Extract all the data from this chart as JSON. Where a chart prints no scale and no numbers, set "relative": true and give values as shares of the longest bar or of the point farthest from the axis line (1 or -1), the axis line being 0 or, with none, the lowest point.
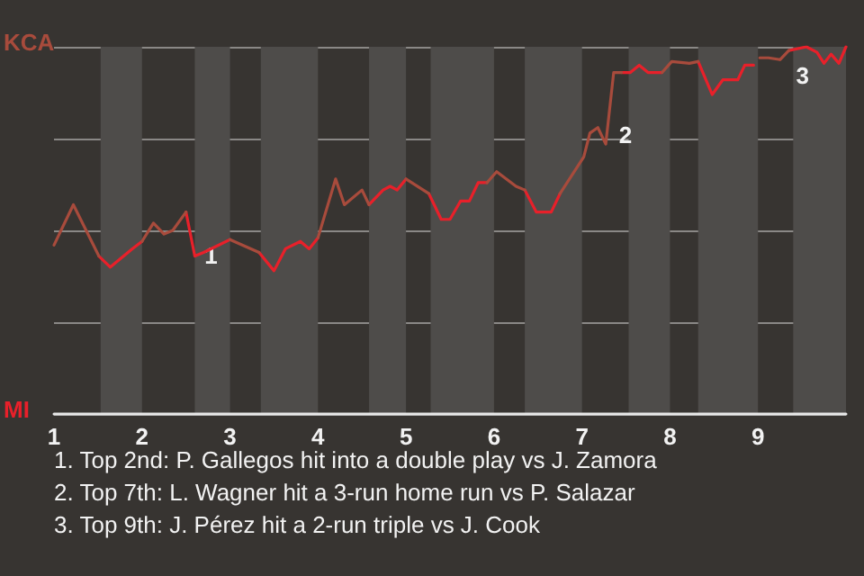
{
  "chart_data": {
    "type": "line",
    "relative": true,
    "grid": "y",
    "marker": "none",
    "line_style": "solid",
    "xlim": [
      1,
      10
    ],
    "xticks": [
      1,
      2,
      3,
      4,
      5,
      6,
      7,
      8,
      9
    ],
    "bands": [
      {
        "axis": "x",
        "from": 1.53,
        "to": 2,
        "color": "#4e4c4a"
      },
      {
        "axis": "x",
        "from": 2.6,
        "to": 3,
        "color": "#4e4c4a"
      },
      {
        "axis": "x",
        "from": 3.35,
        "to": 4,
        "color": "#4e4c4a"
      },
      {
        "axis": "x",
        "from": 4.58,
        "to": 5,
        "color": "#4e4c4a"
      },
      {
        "axis": "x",
        "from": 5.28,
        "to": 6,
        "color": "#4e4c4a"
      },
      {
        "axis": "x",
        "from": 6.35,
        "to": 7,
        "color": "#4e4c4a"
      },
      {
        "axis": "x",
        "from": 7.53,
        "to": 8,
        "color": "#4e4c4a"
      },
      {
        "axis": "x",
        "from": 8.32,
        "to": 9,
        "color": "#4e4c4a"
      },
      {
        "axis": "x",
        "from": 9.4,
        "to": 10,
        "color": "#4e4c4a"
      }
    ],
    "series": [
      {
        "color": "#a84b3c",
        "x": [
          1.0,
          1.22,
          1.51,
          1.78,
          2.0,
          2.13,
          2.25,
          2.35,
          2.5,
          2.75,
          3.0,
          3.33,
          3.63,
          4.0,
          4.2,
          4.3,
          4.5,
          4.58,
          4.8,
          5.0,
          5.26,
          5.5,
          5.92,
          6.03,
          6.25,
          6.35,
          6.58,
          6.75,
          7.02,
          7.09,
          7.18,
          7.27,
          7.36,
          7.45,
          7.64,
          7.91,
          8.02,
          8.22,
          8.32,
          8.67,
          9.02,
          9.12,
          9.25,
          9.35
        ],
        "values": [
          0.46,
          0.57,
          0.43,
          null,
          0.47,
          0.52,
          0.49,
          0.5,
          0.55,
          null,
          0.475,
          0.44,
          null,
          0.48,
          0.64,
          0.57,
          0.61,
          0.57,
          null,
          0.64,
          0.6,
          null,
          0.63,
          0.66,
          0.62,
          0.61,
          null,
          0.6,
          0.7,
          0.765,
          0.78,
          0.735,
          0.93,
          0.93,
          null,
          0.93,
          0.96,
          0.955,
          0.96,
          null,
          0.97,
          0.97,
          0.965,
          0.99
        ]
      },
      {
        "color": "#e8202a",
        "x": [
          1.51,
          1.64,
          1.89,
          2.0,
          2.25,
          2.5,
          2.6,
          2.7,
          3.0,
          3.13,
          3.33,
          3.5,
          3.63,
          3.8,
          3.9,
          4.0,
          4.3,
          4.58,
          4.74,
          4.82,
          4.9,
          5.0,
          5.1,
          5.26,
          5.4,
          5.5,
          5.62,
          5.72,
          5.82,
          5.92,
          6.13,
          6.35,
          6.48,
          6.65,
          6.75,
          6.88,
          7.45,
          7.55,
          7.65,
          7.75,
          7.91,
          8.17,
          8.32,
          8.48,
          8.6,
          8.77,
          8.85,
          8.95,
          9.17,
          9.35,
          9.55,
          9.67,
          9.75,
          9.83,
          9.92,
          10
        ],
        "values": [
          0.43,
          0.4,
          0.45,
          0.47,
          null,
          0.55,
          0.43,
          0.44,
          0.475,
          null,
          0.44,
          0.39,
          0.45,
          0.47,
          0.45,
          0.48,
          null,
          0.57,
          0.61,
          0.62,
          0.61,
          0.64,
          null,
          0.6,
          0.53,
          0.53,
          0.58,
          0.58,
          0.63,
          0.63,
          null,
          0.61,
          0.55,
          0.55,
          0.6,
          null,
          0.93,
          0.93,
          0.95,
          0.93,
          0.93,
          null,
          0.96,
          0.87,
          0.91,
          0.91,
          0.95,
          0.95,
          null,
          0.99,
          1.0,
          0.985,
          0.955,
          0.98,
          0.955,
          1.0
        ]
      }
    ],
    "annotations": [
      "KCA",
      "MI",
      {
        "text": "1",
        "x": 2.65,
        "y": 0.45
      },
      {
        "text": "2",
        "x": 7.36,
        "y": 0.78
      },
      {
        "text": "3",
        "x": 9.37,
        "y": 0.94
      },
      "1. Top 2nd: P. Gallegos hit into a double play vs J. Zamora",
      "2. Top 7th: L. Wagner hit a 3-run home run vs P. Salazar",
      "3. Top 9th: J. Pérez hit a 2-run triple vs J. Cook"
    ]
  }
}
